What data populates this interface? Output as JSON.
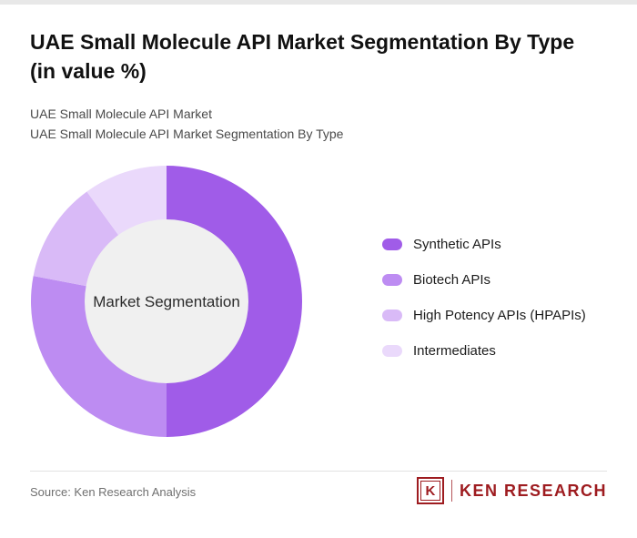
{
  "page": {
    "title_line1": "UAE Small Molecule API Market Segmentation By Type",
    "title_line2": "(in value %)",
    "subtitle_line1": "UAE Small Molecule API Market",
    "subtitle_line2": "UAE Small Molecule API Market Segmentation By Type",
    "source": "Source: Ken Research Analysis",
    "logo_letter": "K",
    "logo_text": "KEN RESEARCH",
    "logo_color": "#9e1c20"
  },
  "chart_data": {
    "type": "pie",
    "variant": "donut",
    "title": "UAE Small Molecule API Market Segmentation By Type (in value %)",
    "center_label": "Market Segmentation",
    "legend_position": "right",
    "values_shown": false,
    "start_angle_deg": -90,
    "direction": "clockwise",
    "center_fill": "#f0f0f0",
    "segments": [
      {
        "label": "Synthetic APIs",
        "value": 50,
        "color": "#a05ce8"
      },
      {
        "label": "Biotech APIs",
        "value": 28,
        "color": "#bd8cf2"
      },
      {
        "label": "High Potency APIs (HPAPIs)",
        "value": 12,
        "color": "#d9baf7"
      },
      {
        "label": "Intermediates",
        "value": 10,
        "color": "#ead9fb"
      }
    ]
  }
}
